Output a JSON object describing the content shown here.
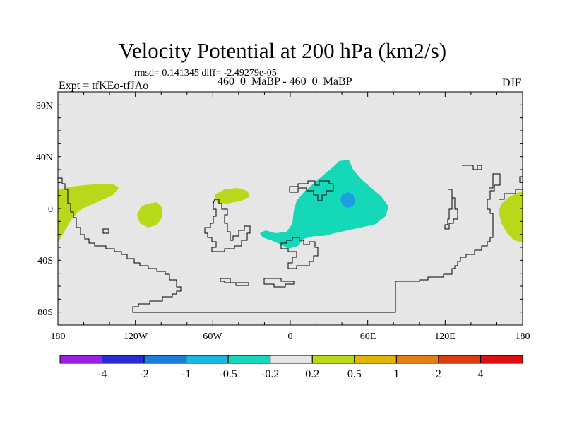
{
  "title": "Velocity Potential at 200 hPa (km2/s)",
  "stats_label": "rmsd= 0.141345 diff= -2.49279e-05",
  "left_label": "Expt = tfKEo-tfJAo",
  "center_label": "460_0_MaBP - 460_0_MaBP",
  "right_label": "DJF",
  "colors": {
    "background_field": "#e6e6e6",
    "coast": "#000000"
  },
  "map": {
    "lon_ticks": [
      "180",
      "120W",
      "60W",
      "0",
      "60E",
      "120E",
      "180"
    ],
    "lat_ticks": [
      "80N",
      "40N",
      "0",
      "40S",
      "80S"
    ]
  },
  "colorbar": {
    "colors": [
      "#9b1fe6",
      "#2b2bd6",
      "#1c7edb",
      "#19b8e0",
      "#15d8b8",
      "#e6e6e6",
      "#b8d81a",
      "#e0b400",
      "#e67e10",
      "#e03a10",
      "#e00f0f"
    ],
    "labels": [
      "-4",
      "-2",
      "-1",
      "-0.5",
      "-0.2",
      "0.2",
      "0.5",
      "1",
      "2",
      "4"
    ]
  }
}
